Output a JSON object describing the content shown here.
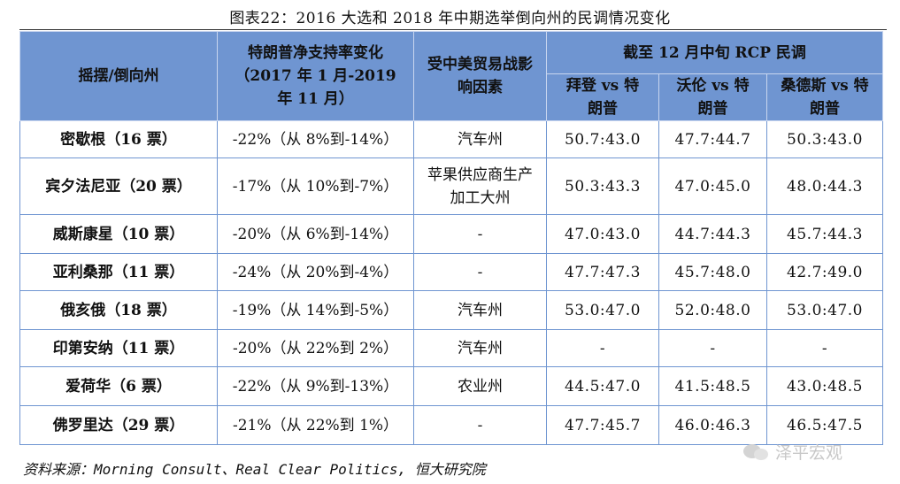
{
  "title": "图表22：2016 大选和 2018 年中期选举倒向州的民调情况变化",
  "headers": {
    "state": "摇摆/倒向州",
    "trump_change": "特朗普净支持率变化（2017 年 1 月-2019 年 11 月）",
    "trade_war": "受中美贸易战影响因素",
    "rcp_group": "截至 12 月中旬 RCP 民调",
    "biden": "拜登 vs 特朗普",
    "warren": "沃伦 vs 特朗普",
    "sanders": "桑德斯 vs 特朗普"
  },
  "rows": [
    {
      "state": "密歇根（16 票）",
      "change": "-22%（从 8%到-14%）",
      "factor": "汽车州",
      "biden": "50.7:43.0",
      "warren": "47.7:44.7",
      "sanders": "50.3:43.0"
    },
    {
      "state": "宾夕法尼亚（20 票）",
      "change": "-17%（从 10%到-7%）",
      "factor": "苹果供应商生产加工大州",
      "biden": "50.3:43.3",
      "warren": "47.0:45.0",
      "sanders": "48.0:44.3"
    },
    {
      "state": "威斯康星（10 票）",
      "change": "-20%（从 6%到-14%）",
      "factor": "-",
      "biden": "47.0:43.0",
      "warren": "44.7:44.3",
      "sanders": "45.7:44.3"
    },
    {
      "state": "亚利桑那（11 票）",
      "change": "-24%（从 20%到-4%）",
      "factor": "-",
      "biden": "47.7:47.3",
      "warren": "45.7:48.0",
      "sanders": "42.7:49.0"
    },
    {
      "state": "俄亥俄（18 票）",
      "change": "-19%（从 14%到-5%）",
      "factor": "汽车州",
      "biden": "53.0:47.0",
      "warren": "52.0:48.0",
      "sanders": "53.0:47.0"
    },
    {
      "state": "印第安纳（11 票）",
      "change": "-20%（从 22%到 2%）",
      "factor": "汽车州",
      "biden": "-",
      "warren": "-",
      "sanders": "-"
    },
    {
      "state": "爱荷华（6 票）",
      "change": "-22%（从 9%到-13%）",
      "factor": "农业州",
      "biden": "44.5:47.0",
      "warren": "41.5:48.5",
      "sanders": "43.0:48.5"
    },
    {
      "state": "佛罗里达（29 票）",
      "change": "-21%（从 22%到 1%）",
      "factor": "-",
      "biden": "47.7:45.7",
      "warren": "46.0:46.3",
      "sanders": "46.5:47.5"
    }
  ],
  "source": "资料来源：Morning Consult、Real Clear Politics, 恒大研究院",
  "watermark": "泽平宏观"
}
